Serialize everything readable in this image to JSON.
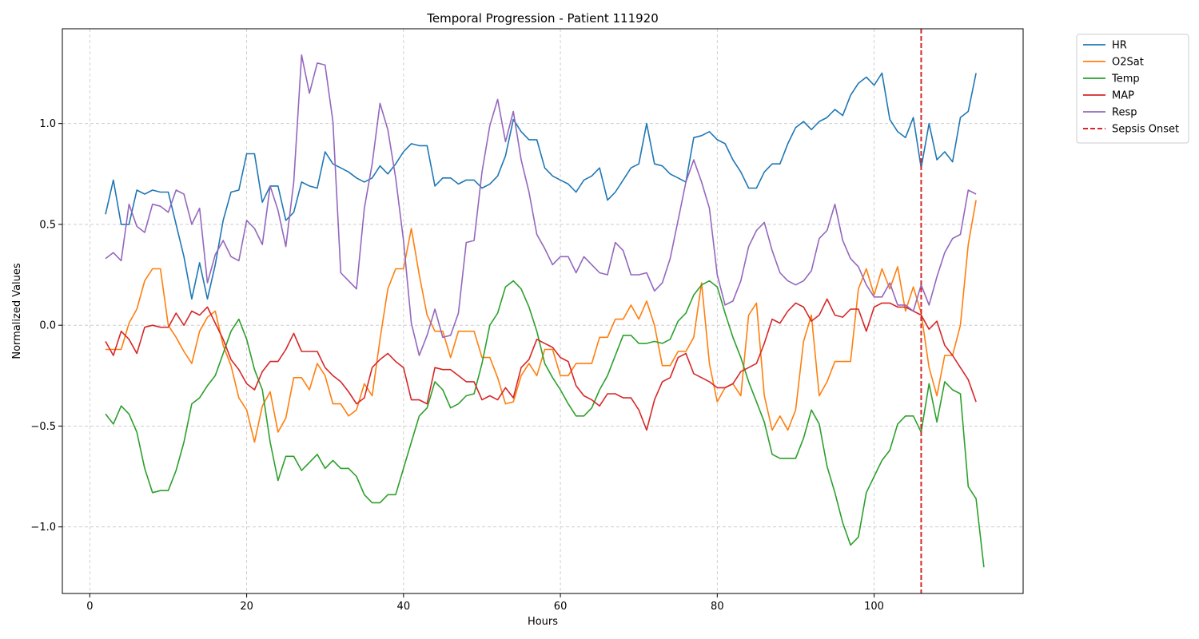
{
  "chart_data": {
    "type": "line",
    "title": "Temporal Progression - Patient 111920",
    "xlabel": "Hours",
    "ylabel": "Normalized Values",
    "xlim": [
      -3.5,
      119
    ],
    "ylim": [
      -1.33,
      1.47
    ],
    "xticks": [
      0,
      20,
      40,
      60,
      80,
      100
    ],
    "xtick_labels": [
      "0",
      "20",
      "40",
      "60",
      "80",
      "100"
    ],
    "yticks": [
      -1.0,
      -0.5,
      0.0,
      0.5,
      1.0
    ],
    "ytick_labels": [
      "−1.0",
      "−0.5",
      "0.0",
      "0.5",
      "1.0"
    ],
    "grid": true,
    "legend_position": "outside-top-right",
    "x_start": 2,
    "series": [
      {
        "name": "HR",
        "color": "#1f77b4",
        "values": [
          0.55,
          0.72,
          0.5,
          0.5,
          0.67,
          0.65,
          0.67,
          0.66,
          0.66,
          0.5,
          0.34,
          0.13,
          0.31,
          0.13,
          0.3,
          0.52,
          0.66,
          0.67,
          0.85,
          0.85,
          0.61,
          0.69,
          0.69,
          0.52,
          0.56,
          0.71,
          0.69,
          0.68,
          0.86,
          0.8,
          0.78,
          0.76,
          0.73,
          0.71,
          0.73,
          0.79,
          0.75,
          0.8,
          0.86,
          0.9,
          0.89,
          0.89,
          0.69,
          0.73,
          0.73,
          0.7,
          0.72,
          0.72,
          0.68,
          0.7,
          0.74,
          0.84,
          1.02,
          0.96,
          0.92,
          0.92,
          0.78,
          0.74,
          0.72,
          0.7,
          0.66,
          0.72,
          0.74,
          0.78,
          0.62,
          0.66,
          0.72,
          0.78,
          0.8,
          1.0,
          0.8,
          0.79,
          0.75,
          0.73,
          0.71,
          0.93,
          0.94,
          0.96,
          0.92,
          0.9,
          0.82,
          0.76,
          0.68,
          0.68,
          0.76,
          0.8,
          0.8,
          0.9,
          0.98,
          1.01,
          0.97,
          1.01,
          1.03,
          1.07,
          1.04,
          1.14,
          1.2,
          1.23,
          1.19,
          1.25,
          1.02,
          0.96,
          0.93,
          1.03,
          0.78,
          1.0,
          0.82,
          0.86,
          0.81,
          1.03,
          1.06,
          1.25
        ]
      },
      {
        "name": "O2Sat",
        "color": "#ff7f0e",
        "values": [
          -0.12,
          -0.12,
          -0.12,
          0.01,
          0.08,
          0.22,
          0.28,
          0.28,
          0.0,
          -0.06,
          -0.13,
          -0.19,
          -0.03,
          0.04,
          0.07,
          -0.1,
          -0.2,
          -0.36,
          -0.42,
          -0.58,
          -0.4,
          -0.33,
          -0.53,
          -0.46,
          -0.26,
          -0.26,
          -0.32,
          -0.19,
          -0.25,
          -0.39,
          -0.39,
          -0.45,
          -0.42,
          -0.29,
          -0.35,
          -0.07,
          0.18,
          0.28,
          0.28,
          0.48,
          0.25,
          0.05,
          -0.03,
          -0.03,
          -0.16,
          -0.03,
          -0.03,
          -0.03,
          -0.16,
          -0.16,
          -0.26,
          -0.39,
          -0.38,
          -0.25,
          -0.19,
          -0.25,
          -0.12,
          -0.12,
          -0.25,
          -0.25,
          -0.19,
          -0.19,
          -0.19,
          -0.06,
          -0.06,
          0.03,
          0.03,
          0.1,
          0.03,
          0.12,
          0.0,
          -0.2,
          -0.2,
          -0.13,
          -0.13,
          -0.06,
          0.21,
          -0.19,
          -0.38,
          -0.31,
          -0.29,
          -0.35,
          0.05,
          0.11,
          -0.35,
          -0.52,
          -0.45,
          -0.52,
          -0.42,
          -0.08,
          0.05,
          -0.35,
          -0.28,
          -0.18,
          -0.18,
          -0.18,
          0.18,
          0.28,
          0.15,
          0.28,
          0.18,
          0.29,
          0.07,
          0.19,
          0.06,
          -0.21,
          -0.35,
          -0.15,
          -0.15,
          0.0,
          0.4,
          0.62
        ]
      },
      {
        "name": "Temp",
        "color": "#2ca02c",
        "values": [
          -0.44,
          -0.49,
          -0.4,
          -0.44,
          -0.53,
          -0.71,
          -0.83,
          -0.82,
          -0.82,
          -0.72,
          -0.58,
          -0.39,
          -0.36,
          -0.3,
          -0.25,
          -0.14,
          -0.03,
          0.03,
          -0.07,
          -0.22,
          -0.32,
          -0.58,
          -0.77,
          -0.65,
          -0.65,
          -0.72,
          -0.68,
          -0.64,
          -0.71,
          -0.67,
          -0.71,
          -0.71,
          -0.75,
          -0.84,
          -0.88,
          -0.88,
          -0.84,
          -0.84,
          -0.71,
          -0.58,
          -0.45,
          -0.41,
          -0.28,
          -0.32,
          -0.41,
          -0.39,
          -0.35,
          -0.34,
          -0.19,
          0.0,
          0.06,
          0.19,
          0.22,
          0.18,
          0.09,
          -0.03,
          -0.19,
          -0.26,
          -0.32,
          -0.39,
          -0.45,
          -0.45,
          -0.41,
          -0.32,
          -0.25,
          -0.15,
          -0.05,
          -0.05,
          -0.09,
          -0.09,
          -0.08,
          -0.09,
          -0.07,
          0.02,
          0.06,
          0.15,
          0.2,
          0.22,
          0.19,
          0.06,
          -0.06,
          -0.16,
          -0.28,
          -0.38,
          -0.48,
          -0.64,
          -0.66,
          -0.66,
          -0.66,
          -0.56,
          -0.42,
          -0.49,
          -0.7,
          -0.83,
          -0.98,
          -1.09,
          -1.05,
          -0.83,
          -0.75,
          -0.67,
          -0.62,
          -0.49,
          -0.45,
          -0.45,
          -0.53,
          -0.29,
          -0.48,
          -0.28,
          -0.32,
          -0.34,
          -0.8,
          -0.86,
          -1.2
        ]
      },
      {
        "name": "MAP",
        "color": "#d62728",
        "values": [
          -0.08,
          -0.15,
          -0.03,
          -0.07,
          -0.14,
          -0.01,
          0.0,
          -0.01,
          -0.01,
          0.06,
          0.0,
          0.07,
          0.05,
          0.09,
          0.01,
          -0.07,
          -0.17,
          -0.22,
          -0.29,
          -0.32,
          -0.23,
          -0.18,
          -0.18,
          -0.12,
          -0.04,
          -0.13,
          -0.13,
          -0.13,
          -0.21,
          -0.25,
          -0.28,
          -0.33,
          -0.39,
          -0.36,
          -0.21,
          -0.17,
          -0.14,
          -0.18,
          -0.21,
          -0.37,
          -0.37,
          -0.39,
          -0.21,
          -0.22,
          -0.22,
          -0.25,
          -0.28,
          -0.28,
          -0.37,
          -0.35,
          -0.37,
          -0.31,
          -0.36,
          -0.21,
          -0.17,
          -0.07,
          -0.09,
          -0.11,
          -0.16,
          -0.18,
          -0.3,
          -0.35,
          -0.37,
          -0.4,
          -0.34,
          -0.34,
          -0.36,
          -0.36,
          -0.42,
          -0.52,
          -0.37,
          -0.28,
          -0.26,
          -0.16,
          -0.14,
          -0.24,
          -0.26,
          -0.28,
          -0.31,
          -0.31,
          -0.29,
          -0.23,
          -0.21,
          -0.19,
          -0.09,
          0.03,
          0.01,
          0.07,
          0.11,
          0.09,
          0.02,
          0.05,
          0.13,
          0.05,
          0.04,
          0.08,
          0.08,
          -0.03,
          0.09,
          0.11,
          0.11,
          0.09,
          0.09,
          0.07,
          0.05,
          -0.02,
          0.02,
          -0.1,
          -0.15,
          -0.21,
          -0.27,
          -0.38
        ]
      },
      {
        "name": "Resp",
        "color": "#9467bd",
        "values": [
          0.33,
          0.36,
          0.32,
          0.6,
          0.49,
          0.46,
          0.6,
          0.59,
          0.56,
          0.67,
          0.65,
          0.5,
          0.58,
          0.21,
          0.35,
          0.42,
          0.34,
          0.32,
          0.52,
          0.48,
          0.4,
          0.69,
          0.57,
          0.39,
          0.71,
          1.34,
          1.15,
          1.3,
          1.29,
          1.01,
          0.26,
          0.22,
          0.18,
          0.58,
          0.8,
          1.1,
          0.97,
          0.73,
          0.42,
          0.01,
          -0.15,
          -0.05,
          0.08,
          -0.06,
          -0.05,
          0.06,
          0.41,
          0.42,
          0.76,
          0.99,
          1.12,
          0.91,
          1.06,
          0.82,
          0.66,
          0.45,
          0.38,
          0.3,
          0.34,
          0.34,
          0.26,
          0.34,
          0.3,
          0.26,
          0.25,
          0.41,
          0.37,
          0.25,
          0.25,
          0.26,
          0.17,
          0.21,
          0.33,
          0.52,
          0.71,
          0.82,
          0.71,
          0.58,
          0.25,
          0.1,
          0.12,
          0.22,
          0.39,
          0.47,
          0.51,
          0.37,
          0.26,
          0.22,
          0.2,
          0.22,
          0.27,
          0.43,
          0.47,
          0.6,
          0.42,
          0.33,
          0.29,
          0.2,
          0.14,
          0.14,
          0.21,
          0.1,
          0.1,
          0.07,
          0.2,
          0.1,
          0.24,
          0.36,
          0.43,
          0.45,
          0.67,
          0.65
        ]
      }
    ],
    "vline": {
      "name": "Sepsis Onset",
      "x": 106,
      "color": "#d62728",
      "style": "dashed"
    }
  }
}
